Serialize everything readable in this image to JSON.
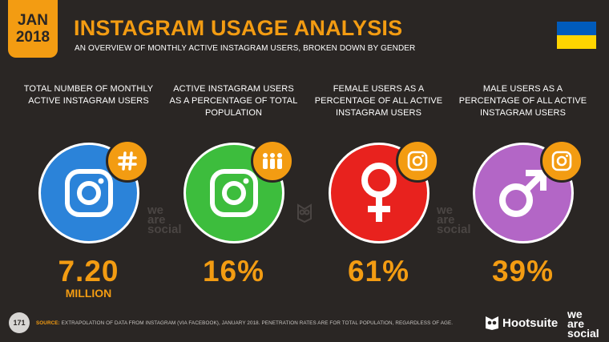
{
  "header": {
    "month": "JAN",
    "year": "2018",
    "title": "INSTAGRAM USAGE ANALYSIS",
    "subtitle": "AN OVERVIEW OF MONTHLY ACTIVE INSTAGRAM USERS, BROKEN DOWN BY GENDER"
  },
  "flag": {
    "top_color": "#005bbb",
    "bottom_color": "#ffd500"
  },
  "stats": [
    {
      "label": "TOTAL NUMBER OF MONTHLY ACTIVE INSTAGRAM USERS",
      "value": "7.20",
      "unit": "MILLION",
      "circle_color": "#2b83d9",
      "icon": "instagram-icon",
      "badge_icon": "hashtag-icon"
    },
    {
      "label": "ACTIVE INSTAGRAM USERS AS A PERCENTAGE OF TOTAL POPULATION",
      "value": "16%",
      "unit": "",
      "circle_color": "#3dbd3d",
      "icon": "instagram-icon",
      "badge_icon": "people-icon"
    },
    {
      "label": "FEMALE USERS AS A PERCENTAGE OF ALL ACTIVE INSTAGRAM USERS",
      "value": "61%",
      "unit": "",
      "circle_color": "#e8221e",
      "icon": "female-icon",
      "badge_icon": "instagram-icon"
    },
    {
      "label": "MALE USERS AS A PERCENTAGE OF ALL ACTIVE INSTAGRAM USERS",
      "value": "39%",
      "unit": "",
      "circle_color": "#b366c6",
      "icon": "male-icon",
      "badge_icon": "instagram-icon"
    }
  ],
  "watermark": {
    "line1": "we",
    "line2": "are",
    "line3": "social"
  },
  "footer": {
    "page_number": "171",
    "source_label": "SOURCE:",
    "source_text": "EXTRAPOLATION OF DATA FROM INSTAGRAM (VIA FACEBOOK), JANUARY 2018. PENETRATION RATES ARE FOR TOTAL POPULATION, REGARDLESS OF AGE.",
    "brand1": "Hootsuite",
    "brand2_line1": "we",
    "brand2_line2": "are",
    "brand2_line3": "social"
  },
  "colors": {
    "accent": "#f39c12",
    "background": "#2a2624"
  }
}
